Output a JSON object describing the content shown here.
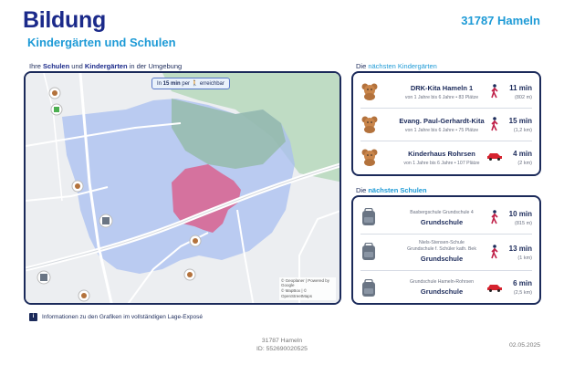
{
  "header": {
    "title": "Bildung",
    "subtitle": "Kindergärten und Schulen",
    "location": "31787 Hameln"
  },
  "map_section": {
    "label_pre": "Ihre ",
    "label_hl1": "Schulen",
    "label_mid": " und ",
    "label_hl2": "Kindergärten",
    "label_post": " in der Umgebung",
    "badge_pre": "In ",
    "badge_bold": "15 min",
    "badge_mid": " per ",
    "badge_post": " erreichbar",
    "attribution_1": "© Geoplaner | Powered by Google",
    "attribution_2": "© MapBox | © OpenStreetMaps"
  },
  "kindergarten_section": {
    "label_pre": "Die ",
    "label_hl": "nächsten Kindergärten",
    "items": [
      {
        "name": "DRK-Kita Hameln 1",
        "detail": "von 1 Jahre bis 6 Jahre • 83 Plätze",
        "mode": "walk",
        "time": "11 min",
        "distance": "(802 m)"
      },
      {
        "name": "Evang. Paul-Gerhardt-Kita",
        "detail": "von 1 Jahre bis 6 Jahre • 75 Plätze",
        "mode": "walk",
        "time": "15 min",
        "distance": "(1,2 km)"
      },
      {
        "name": "Kinderhaus Rohrsen",
        "detail": "von 1 Jahre bis 6 Jahre • 107 Plätze",
        "mode": "car",
        "time": "4 min",
        "distance": "(2 km)"
      }
    ]
  },
  "school_section": {
    "label_pre": "Die ",
    "label_hl": "nächsten Schulen",
    "items": [
      {
        "name_line1": "Basbergschule Grundschule 4",
        "name_line2": "",
        "type": "Grundschule",
        "mode": "walk",
        "time": "10 min",
        "distance": "(815 m)"
      },
      {
        "name_line1": "Niels-Stensen-Schule",
        "name_line2": "Grundschule f. Schüler kath. Bek",
        "type": "Grundschule",
        "mode": "walk",
        "time": "13 min",
        "distance": "(1 km)"
      },
      {
        "name_line1": "Grundschule Hameln-Rohrsen",
        "name_line2": "",
        "type": "Grundschule",
        "mode": "car",
        "time": "6 min",
        "distance": "(2,5 km)"
      }
    ]
  },
  "info": {
    "icon": "info-icon",
    "text": "Informationen zu den Grafiken im vollständigen Lage-Exposé"
  },
  "footer": {
    "location": "31787 Hameln",
    "id": "ID: 552690020525",
    "date": "02.05.2025"
  },
  "colors": {
    "navy": "#1b2a5a",
    "brand": "#1b2a8a",
    "accent": "#1d9ad6",
    "isochrone": "#a9bff0",
    "focus": "#d9638f",
    "park": "#8fb89c"
  }
}
